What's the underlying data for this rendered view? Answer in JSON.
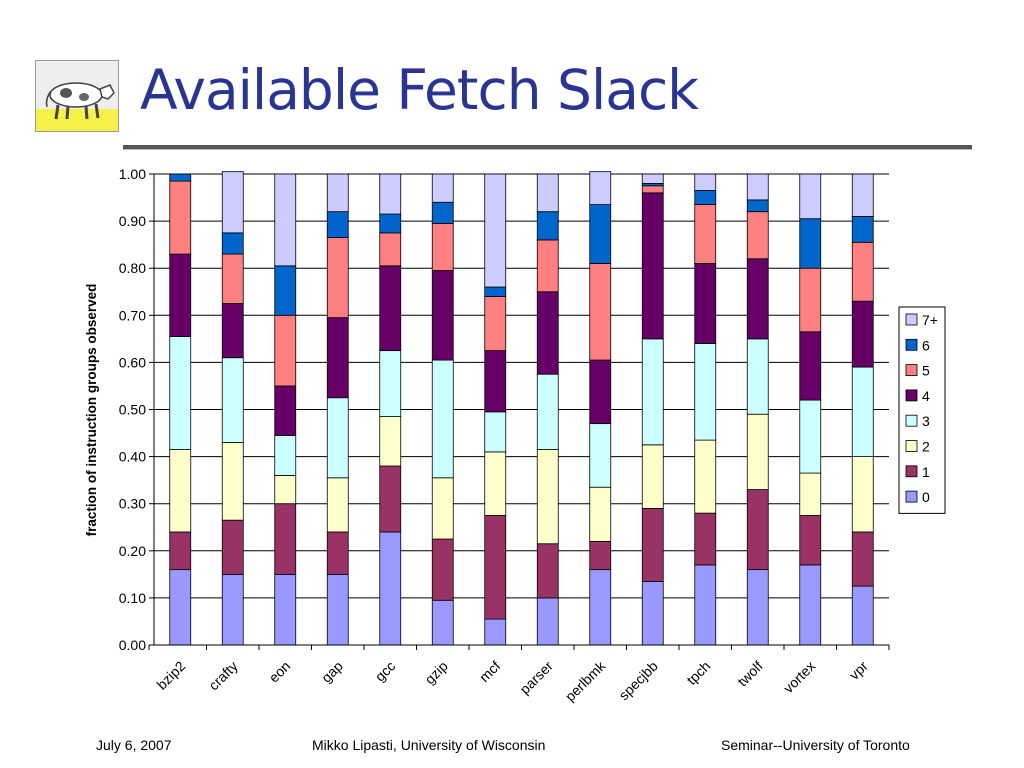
{
  "slide": {
    "title": "Available Fetch Slack",
    "footer_left": "July 6, 2007",
    "footer_center": "Mikko Lipasti, University of Wisconsin",
    "footer_right": "Seminar--University of Toronto"
  },
  "chart_data": {
    "type": "bar",
    "stacked": true,
    "title": "",
    "xlabel": "",
    "ylabel": "fraction of instruction groups observed",
    "ylim": [
      0,
      1
    ],
    "yticks": [
      "0.00",
      "0.10",
      "0.20",
      "0.30",
      "0.40",
      "0.50",
      "0.60",
      "0.70",
      "0.80",
      "0.90",
      "1.00"
    ],
    "grid": true,
    "legend_position": "right",
    "categories": [
      "bzip2",
      "crafty",
      "eon",
      "gap",
      "gcc",
      "gzip",
      "mcf",
      "parser",
      "perlbmk",
      "specjbb",
      "tpch",
      "twolf",
      "vortex",
      "vpr"
    ],
    "series": [
      {
        "name": "0",
        "color": "#9999ff",
        "values": [
          0.16,
          0.15,
          0.15,
          0.15,
          0.24,
          0.095,
          0.055,
          0.1,
          0.16,
          0.135,
          0.17,
          0.16,
          0.17,
          0.125
        ]
      },
      {
        "name": "1",
        "color": "#993366",
        "values": [
          0.08,
          0.115,
          0.15,
          0.09,
          0.14,
          0.13,
          0.22,
          0.115,
          0.06,
          0.155,
          0.11,
          0.17,
          0.105,
          0.115
        ]
      },
      {
        "name": "2",
        "color": "#ffffcc",
        "values": [
          0.175,
          0.165,
          0.06,
          0.115,
          0.105,
          0.13,
          0.135,
          0.2,
          0.115,
          0.135,
          0.155,
          0.16,
          0.09,
          0.16
        ]
      },
      {
        "name": "3",
        "color": "#ccffff",
        "values": [
          0.24,
          0.18,
          0.085,
          0.17,
          0.14,
          0.25,
          0.085,
          0.16,
          0.135,
          0.225,
          0.205,
          0.16,
          0.155,
          0.19
        ]
      },
      {
        "name": "4",
        "color": "#660066",
        "values": [
          0.175,
          0.115,
          0.105,
          0.17,
          0.18,
          0.19,
          0.13,
          0.175,
          0.135,
          0.31,
          0.17,
          0.17,
          0.145,
          0.14
        ]
      },
      {
        "name": "5",
        "color": "#ff8080",
        "values": [
          0.155,
          0.105,
          0.15,
          0.17,
          0.07,
          0.1,
          0.115,
          0.11,
          0.205,
          0.015,
          0.125,
          0.1,
          0.135,
          0.125
        ]
      },
      {
        "name": "6",
        "color": "#0066cc",
        "values": [
          0.015,
          0.045,
          0.105,
          0.055,
          0.04,
          0.045,
          0.02,
          0.06,
          0.125,
          0.005,
          0.03,
          0.025,
          0.105,
          0.055
        ]
      },
      {
        "name": "7+",
        "color": "#ccccff",
        "values": [
          0.0,
          0.13,
          0.195,
          0.08,
          0.085,
          0.06,
          0.24,
          0.08,
          0.07,
          0.02,
          0.035,
          0.055,
          0.095,
          0.09
        ]
      }
    ]
  }
}
